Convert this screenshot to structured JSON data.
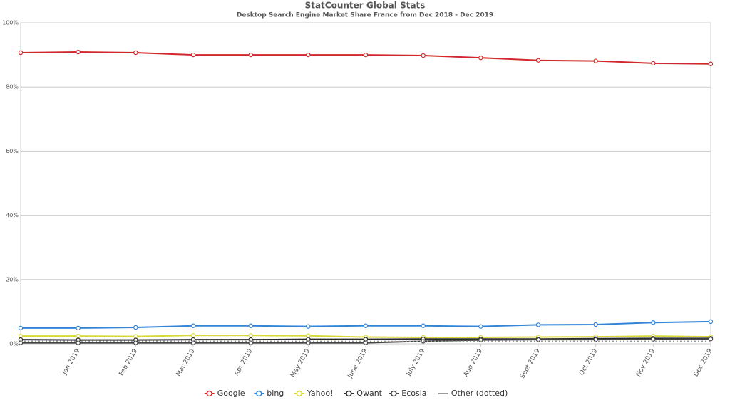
{
  "chart_data": {
    "type": "line",
    "title": "StatCounter Global Stats",
    "subtitle": "Desktop Search Engine Market Share France from Dec 2018 - Dec 2019",
    "categories": [
      null,
      "Jan 2019",
      "Feb 2019",
      "Mar 2019",
      "Apr 2019",
      "May 2019",
      "June 2019",
      "July 2019",
      "Aug 2019",
      "Sept 2019",
      "Oct 2019",
      "Nov 2019",
      "Dec 2019"
    ],
    "series": [
      {
        "name": "Google",
        "color": "#d0282c",
        "values": [
          90.7,
          90.9,
          90.7,
          90.0,
          90.0,
          90.0,
          90.0,
          89.8,
          89.1,
          88.3,
          88.1,
          87.4,
          87.2
        ]
      },
      {
        "name": "bing",
        "color": "#3384d6",
        "values": [
          4.9,
          4.9,
          5.1,
          5.6,
          5.6,
          5.4,
          5.6,
          5.6,
          5.4,
          5.9,
          6.0,
          6.6,
          6.9
        ]
      },
      {
        "name": "Yahoo!",
        "color": "#d8d83a",
        "values": [
          2.4,
          2.4,
          2.3,
          2.6,
          2.6,
          2.5,
          2.1,
          2.0,
          2.0,
          2.1,
          2.2,
          2.4,
          2.2
        ]
      },
      {
        "name": "Qwant",
        "color": "#2a2a2a",
        "values": [
          1.3,
          1.2,
          1.2,
          1.3,
          1.3,
          1.4,
          1.4,
          1.5,
          1.5,
          1.5,
          1.6,
          1.7,
          1.7
        ]
      },
      {
        "name": "Ecosia",
        "color": "#444444",
        "values": [
          0.3,
          0.3,
          0.3,
          0.3,
          0.3,
          0.3,
          0.3,
          0.8,
          1.2,
          1.3,
          1.3,
          1.4,
          1.5
        ]
      },
      {
        "name": "Other (dotted)",
        "color": "#999999",
        "line_style": "dotted",
        "values": [
          0.8,
          0.8,
          0.8,
          0.8,
          0.8,
          0.8,
          0.8,
          0.8,
          0.8,
          0.8,
          0.8,
          0.8,
          0.8
        ]
      }
    ],
    "ylim": [
      0,
      100
    ],
    "yticks": [
      {
        "value": 0,
        "label": "0%"
      },
      {
        "value": 20,
        "label": "20%"
      },
      {
        "value": 40,
        "label": "40%"
      },
      {
        "value": 60,
        "label": "60%"
      },
      {
        "value": 80,
        "label": "80%"
      },
      {
        "value": 100,
        "label": "100%"
      }
    ],
    "grid": true,
    "legend": "bottom"
  }
}
